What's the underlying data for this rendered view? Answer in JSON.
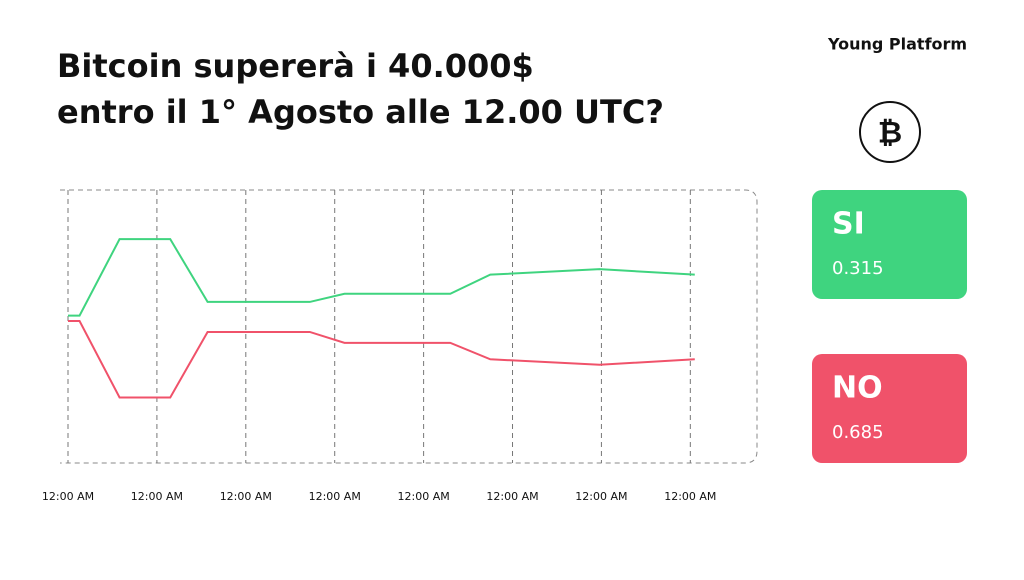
{
  "header": {
    "title_lines": [
      "Bitcoin supererà i 40.000$",
      "entro il 1° Agosto alle 12.00 UTC?"
    ],
    "brand": "Young Platform",
    "coin_symbol": "₿"
  },
  "options": [
    {
      "label": "SI",
      "value": 0.315,
      "color": "#3fd47f"
    },
    {
      "label": "NO",
      "value": 0.685,
      "color": "#f0526a"
    }
  ],
  "chart_data": {
    "type": "line",
    "xlim": [
      0,
      7.75
    ],
    "ylim": [
      0,
      1
    ],
    "xticks": [
      {
        "value": 0,
        "label": "12:00 AM"
      },
      {
        "value": 1,
        "label": "12:00 AM"
      },
      {
        "value": 2,
        "label": "12:00 AM"
      },
      {
        "value": 3,
        "label": "12:00 AM"
      },
      {
        "value": 4,
        "label": "12:00 AM"
      },
      {
        "value": 5,
        "label": "12:00 AM"
      },
      {
        "value": 6,
        "label": "12:00 AM"
      },
      {
        "value": 7,
        "label": "12:00 AM"
      }
    ],
    "grid": true,
    "series": [
      {
        "color": "#3fd47f",
        "x": [
          0,
          0.13,
          0.58,
          1.15,
          1.57,
          2.72,
          3.11,
          4.3,
          4.75,
          5.98,
          7.05
        ],
        "values": [
          0.54,
          0.54,
          0.82,
          0.82,
          0.59,
          0.59,
          0.62,
          0.62,
          0.69,
          0.71,
          0.69
        ]
      },
      {
        "color": "#f0526a",
        "x": [
          0,
          0.13,
          0.58,
          1.15,
          1.57,
          2.72,
          3.11,
          4.3,
          4.75,
          5.98,
          7.05
        ],
        "values": [
          0.52,
          0.52,
          0.24,
          0.24,
          0.48,
          0.48,
          0.44,
          0.44,
          0.38,
          0.36,
          0.38
        ]
      }
    ]
  }
}
